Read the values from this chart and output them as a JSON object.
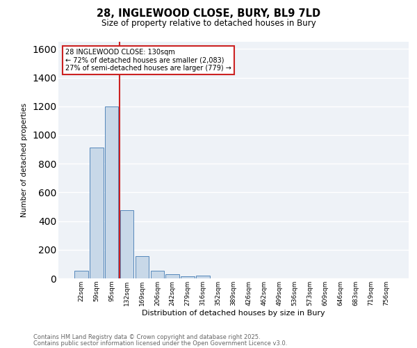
{
  "title_line1": "28, INGLEWOOD CLOSE, BURY, BL9 7LD",
  "title_line2": "Size of property relative to detached houses in Bury",
  "xlabel": "Distribution of detached houses by size in Bury",
  "ylabel": "Number of detached properties",
  "bar_color": "#c8d8e8",
  "bar_edge_color": "#5588bb",
  "bin_labels": [
    "22sqm",
    "59sqm",
    "95sqm",
    "132sqm",
    "169sqm",
    "206sqm",
    "242sqm",
    "279sqm",
    "316sqm",
    "352sqm",
    "389sqm",
    "426sqm",
    "462sqm",
    "499sqm",
    "536sqm",
    "573sqm",
    "609sqm",
    "646sqm",
    "683sqm",
    "719sqm",
    "756sqm"
  ],
  "bin_values": [
    55,
    910,
    1200,
    475,
    155,
    55,
    28,
    15,
    20,
    0,
    0,
    0,
    0,
    0,
    0,
    0,
    0,
    0,
    0,
    0,
    0
  ],
  "vline_color": "#cc2222",
  "ylim": [
    0,
    1650
  ],
  "yticks": [
    0,
    200,
    400,
    600,
    800,
    1000,
    1200,
    1400,
    1600
  ],
  "annotation_title": "28 INGLEWOOD CLOSE: 130sqm",
  "annotation_line2": "← 72% of detached houses are smaller (2,083)",
  "annotation_line3": "27% of semi-detached houses are larger (779) →",
  "background_color": "#eef2f7",
  "grid_color": "#ffffff",
  "footer_line1": "Contains HM Land Registry data © Crown copyright and database right 2025.",
  "footer_line2": "Contains public sector information licensed under the Open Government Licence v3.0."
}
